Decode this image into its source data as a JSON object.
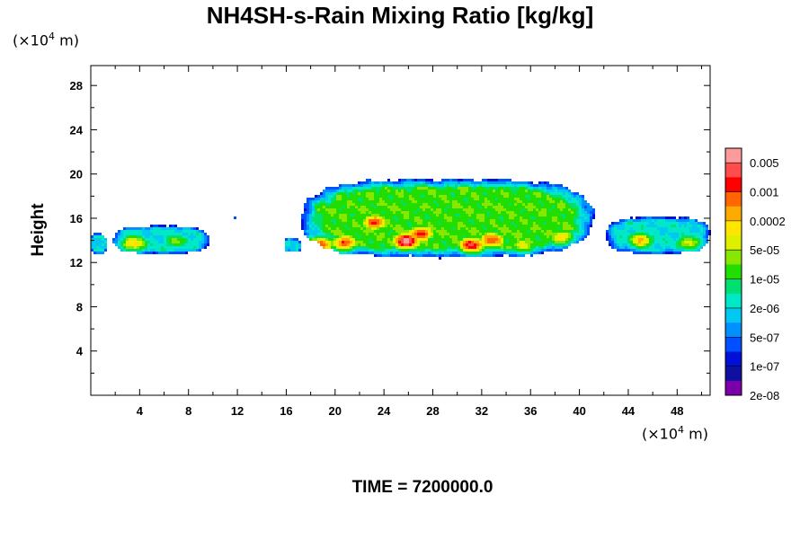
{
  "title": "NH4SH-s-Rain Mixing Ratio [kg/kg]",
  "y_unit": "(×10",
  "x_unit": "(×10",
  "unit_exp": "4",
  "unit_suffix": " m)",
  "ylabel": "Height",
  "time_label": "TIME = 7200000.0",
  "chart_data": {
    "type": "heatmap",
    "title": "NH4SH-s-Rain Mixing Ratio [kg/kg]",
    "xlabel": "",
    "ylabel": "Height",
    "xlim": [
      0,
      50.7
    ],
    "ylim": [
      0,
      29.8
    ],
    "x_ticks": [
      4,
      8,
      12,
      16,
      20,
      24,
      28,
      32,
      36,
      40,
      44,
      48
    ],
    "y_ticks": [
      4,
      8,
      12,
      16,
      20,
      24,
      28
    ],
    "colorbar": {
      "labels": [
        "0.005",
        "0.001",
        "0.0002",
        "5e-05",
        "1e-05",
        "2e-06",
        "5e-07",
        "1e-07",
        "2e-08"
      ],
      "colors": [
        "#ff9a9a",
        "#ff4d4d",
        "#ff0000",
        "#ff6600",
        "#ffaa00",
        "#ffe600",
        "#ddf000",
        "#88e600",
        "#22dd00",
        "#00e070",
        "#00e8c8",
        "#00c8f0",
        "#0090ff",
        "#0050ff",
        "#0010d8",
        "#1010a0",
        "#7a00aa"
      ]
    },
    "regions": [
      {
        "x": [
          0,
          1.3
        ],
        "y": [
          12.8,
          14.6
        ],
        "peak": 0.55
      },
      {
        "x": [
          1.8,
          9.7
        ],
        "y": [
          12.8,
          15.3
        ],
        "peak": 0.6
      },
      {
        "x": [
          11.6,
          11.9
        ],
        "y": [
          15.9,
          16.2
        ],
        "peak": 0.05
      },
      {
        "x": [
          15.8,
          17.2
        ],
        "y": [
          12.9,
          14.2
        ],
        "peak": 0.5
      },
      {
        "x": [
          17.2,
          41.2
        ],
        "y": [
          12.5,
          19.5
        ],
        "peak": 1.0
      },
      {
        "x": [
          42.2,
          50.7
        ],
        "y": [
          12.8,
          16.1
        ],
        "peak": 0.6
      }
    ],
    "hotspots": [
      {
        "x": 3.5,
        "y": 13.7,
        "v": 0.7
      },
      {
        "x": 7.0,
        "y": 13.9,
        "v": 0.55
      },
      {
        "x": 18.8,
        "y": 13.6,
        "v": 0.8
      },
      {
        "x": 20.8,
        "y": 13.8,
        "v": 0.85
      },
      {
        "x": 23.2,
        "y": 15.6,
        "v": 0.85
      },
      {
        "x": 25.8,
        "y": 13.9,
        "v": 1.0
      },
      {
        "x": 27.0,
        "y": 14.6,
        "v": 0.9
      },
      {
        "x": 31.2,
        "y": 13.6,
        "v": 0.9
      },
      {
        "x": 32.8,
        "y": 14.0,
        "v": 0.85
      },
      {
        "x": 35.5,
        "y": 13.6,
        "v": 0.65
      },
      {
        "x": 38.5,
        "y": 14.3,
        "v": 0.7
      },
      {
        "x": 45.0,
        "y": 14.0,
        "v": 0.7
      },
      {
        "x": 49.0,
        "y": 13.8,
        "v": 0.6
      }
    ]
  }
}
